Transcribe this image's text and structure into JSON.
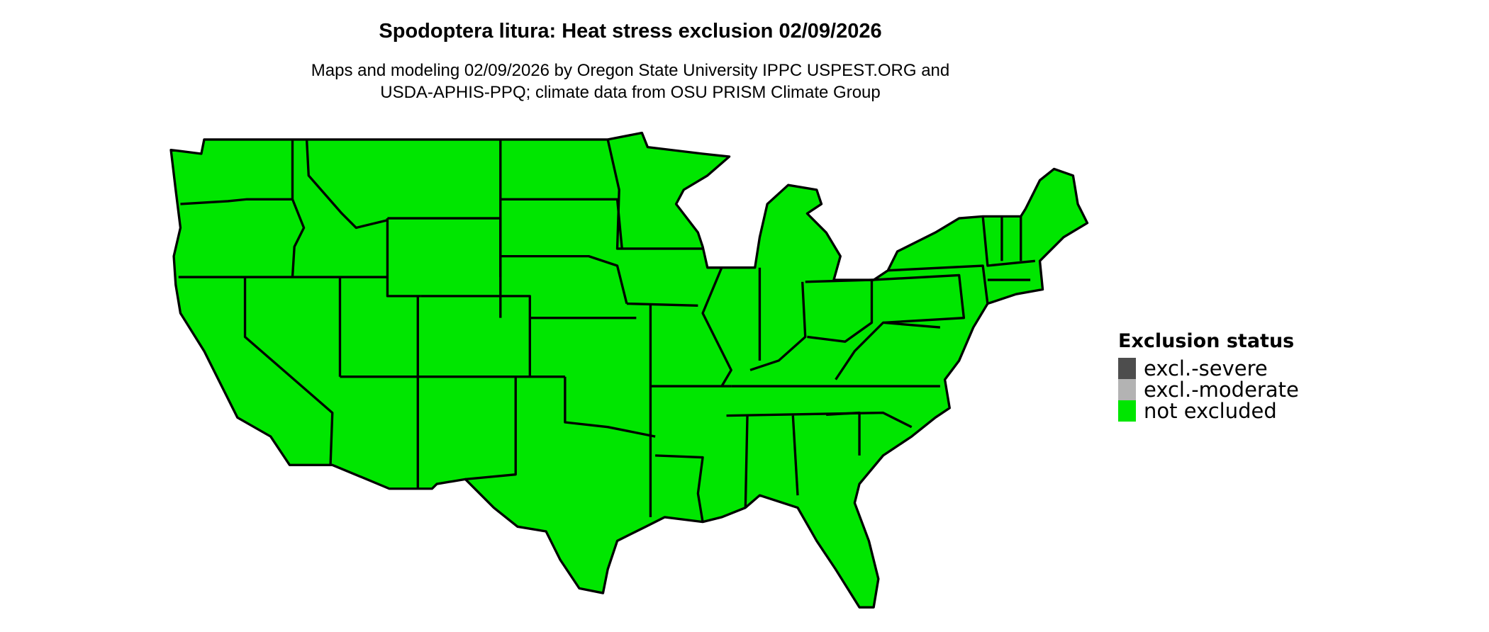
{
  "title": "Spodoptera litura: Heat stress exclusion 02/09/2026",
  "subtitle_line1": "Maps and modeling 02/09/2026 by Oregon State University IPPC USPEST.ORG and",
  "subtitle_line2": "USDA-APHIS-PPQ; climate data from OSU PRISM Climate Group",
  "map": {
    "region": "Contiguous United States",
    "fill_status": "not excluded",
    "fill_color": "#00e600",
    "border_color": "#000000"
  },
  "legend": {
    "title": "Exclusion status",
    "items": [
      {
        "label": "excl.-severe",
        "color": "#4d4d4d"
      },
      {
        "label": "excl.-moderate",
        "color": "#b3b3b3"
      },
      {
        "label": "not excluded",
        "color": "#00e600"
      }
    ]
  }
}
